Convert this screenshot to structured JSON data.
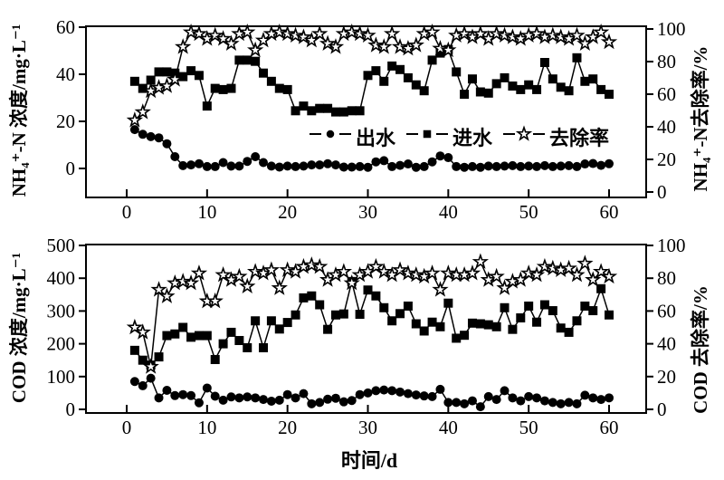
{
  "figure": {
    "background": "#ffffff",
    "foreground": "#000000",
    "xlabel": "时间/d"
  },
  "legend": {
    "items": [
      {
        "key": "effluent",
        "marker": "circle",
        "label": "出水"
      },
      {
        "key": "influent",
        "marker": "square",
        "label": "进水"
      },
      {
        "key": "removal",
        "marker": "star",
        "label": "去除率"
      }
    ]
  },
  "chart_data": [
    {
      "type": "line",
      "position": "top",
      "ylabel_left": "NH₄⁺-N 浓度/mg·L⁻¹",
      "ylabel_right": "NH₄⁺-N去除率/%",
      "x": {
        "start": 1,
        "step": 1,
        "count": 60
      },
      "xlim": [
        0,
        65
      ],
      "xticks": [
        0,
        10,
        20,
        30,
        40,
        50,
        60
      ],
      "ylim_left": [
        0,
        60
      ],
      "yticks_left": [
        0,
        20,
        40,
        60
      ],
      "ylim_right": [
        0,
        100
      ],
      "yticks_right": [
        0,
        20,
        40,
        60,
        80,
        100
      ],
      "grid": false,
      "series": [
        {
          "key": "influent",
          "name": "进水",
          "axis": "left",
          "marker": "square",
          "values": [
            37,
            34,
            37.5,
            41,
            41,
            40.5,
            39,
            41.5,
            39.5,
            26.5,
            34,
            33.5,
            34,
            46,
            46,
            45.5,
            40.5,
            37,
            34,
            33.5,
            24.5,
            26.5,
            24.5,
            25.5,
            25.5,
            24,
            24,
            24.5,
            24.5,
            39.5,
            41.5,
            37,
            43.5,
            42,
            38.5,
            35.5,
            33,
            46,
            49,
            50.5,
            41,
            31.5,
            38,
            32.5,
            32,
            36,
            38.5,
            35,
            33.5,
            35.5,
            33.5,
            45,
            38,
            34.5,
            33,
            47,
            37,
            38,
            33.5,
            31.5
          ]
        },
        {
          "key": "effluent",
          "name": "出水",
          "axis": "left",
          "marker": "circle",
          "values": [
            16.5,
            14.5,
            13.5,
            13,
            10.5,
            5,
            1.2,
            1.5,
            2,
            0.8,
            0.8,
            2.5,
            1,
            1,
            3,
            5,
            2.5,
            1,
            0.6,
            1,
            0.8,
            1,
            1.5,
            1.5,
            2,
            1.5,
            0.6,
            0.6,
            0.8,
            0.5,
            2.8,
            3.3,
            0.8,
            1.3,
            1.9,
            0.5,
            0.8,
            2.8,
            5.3,
            4.6,
            0.8,
            0.5,
            0.8,
            0.5,
            1,
            0.8,
            1,
            1.2,
            0.8,
            1,
            0.8,
            1.2,
            0.8,
            1,
            1.2,
            0.8,
            1.9,
            2.1,
            1.3,
            2
          ]
        },
        {
          "key": "removal",
          "name": "去除率",
          "axis": "right",
          "marker": "star",
          "values": [
            44,
            49,
            62,
            64,
            65,
            69,
            89,
            98,
            97,
            94,
            96,
            94,
            91,
            97,
            98,
            87,
            93,
            97,
            98,
            97,
            96,
            95,
            93,
            97,
            91,
            89,
            97,
            98,
            97,
            96,
            90,
            89,
            97,
            89,
            88,
            90,
            97,
            98,
            88,
            87,
            96,
            97,
            95,
            97,
            94,
            97,
            96,
            95,
            94,
            96,
            97,
            95,
            96,
            95,
            94,
            96,
            91,
            95,
            98,
            92
          ]
        }
      ]
    },
    {
      "type": "line",
      "position": "bottom",
      "ylabel_left": "COD 浓度/mg·L⁻¹",
      "ylabel_right": "COD 去除率/%",
      "x": {
        "start": 1,
        "step": 1,
        "count": 60
      },
      "xlim": [
        0,
        65
      ],
      "xticks": [
        0,
        10,
        20,
        30,
        40,
        50,
        60
      ],
      "ylim_left": [
        0,
        500
      ],
      "yticks_left": [
        0,
        100,
        200,
        300,
        400,
        500
      ],
      "ylim_right": [
        0,
        100
      ],
      "yticks_right": [
        0,
        20,
        40,
        60,
        80,
        100
      ],
      "grid": false,
      "series": [
        {
          "key": "influent",
          "name": "进水",
          "axis": "left",
          "marker": "square",
          "values": [
            180,
            150,
            135,
            160,
            225,
            230,
            250,
            220,
            225,
            225,
            152,
            200,
            235,
            210,
            188,
            270,
            188,
            270,
            245,
            265,
            288,
            340,
            346,
            319,
            244,
            288,
            291,
            390,
            290,
            364,
            346,
            310,
            270,
            292,
            315,
            261,
            239,
            266,
            252,
            324,
            217,
            226,
            263,
            261,
            258,
            252,
            310,
            244,
            279,
            315,
            266,
            319,
            301,
            248,
            235,
            270,
            315,
            301,
            368,
            288
          ]
        },
        {
          "key": "effluent",
          "name": "出水",
          "axis": "left",
          "marker": "circle",
          "values": [
            85,
            72,
            95,
            35,
            58,
            42,
            45,
            42,
            20,
            65,
            40,
            28,
            38,
            35,
            38,
            35,
            30,
            25,
            28,
            45,
            35,
            48,
            17,
            21,
            31,
            34,
            23,
            27,
            45,
            50,
            57,
            59,
            57,
            53,
            48,
            44,
            41,
            39,
            61,
            21,
            21,
            17,
            26,
            8,
            39,
            30,
            57,
            35,
            26,
            39,
            35,
            26,
            21,
            17,
            21,
            17,
            43,
            35,
            30,
            35
          ]
        },
        {
          "key": "removal",
          "name": "去除率",
          "axis": "right",
          "marker": "star",
          "values": [
            50,
            47,
            26,
            73,
            69,
            77,
            78,
            77,
            83,
            66,
            66,
            82,
            79,
            81,
            75,
            84,
            83,
            85,
            74,
            85,
            84,
            87,
            88,
            87,
            79,
            82,
            84,
            77,
            82,
            84,
            87,
            84,
            82,
            85,
            83,
            82,
            81,
            83,
            73,
            83,
            82,
            82,
            83,
            90,
            79,
            81,
            74,
            78,
            79,
            83,
            82,
            87,
            86,
            85,
            86,
            82,
            89,
            79,
            84,
            81
          ]
        }
      ]
    }
  ]
}
